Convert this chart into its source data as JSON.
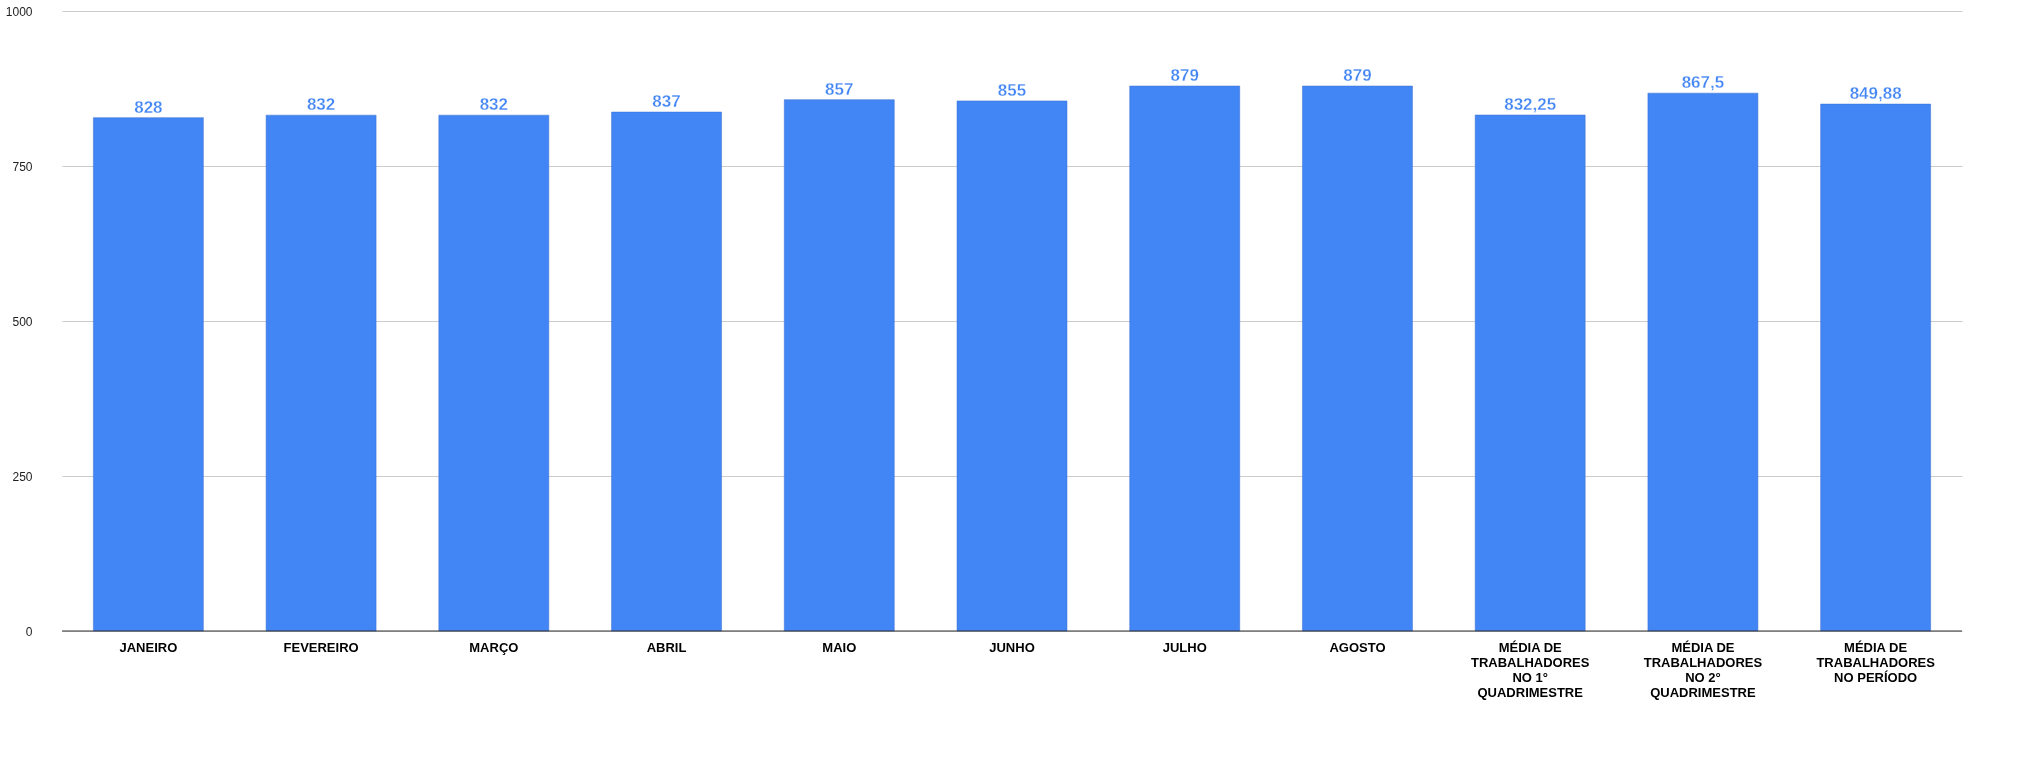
{
  "chart_data": {
    "type": "bar",
    "categories": [
      "JANEIRO",
      "FEVEREIRO",
      "MARÇO",
      "ABRIL",
      "MAIO",
      "JUNHO",
      "JULHO",
      "AGOSTO",
      "MÉDIA DE TRABALHADORES NO 1° QUADRIMESTRE",
      "MÉDIA DE TRABALHADORES NO 2° QUADRIMESTRE",
      "MÉDIA DE TRABALHADORES NO PERÍODO"
    ],
    "values": [
      828,
      832,
      832,
      837,
      857,
      855,
      879,
      879,
      832.25,
      867.5,
      849.88
    ],
    "value_labels": [
      "828",
      "832",
      "832",
      "837",
      "857",
      "855",
      "879",
      "879",
      "832,25",
      "867,5",
      "849,88"
    ],
    "color": "#4285f4",
    "ylim": [
      0,
      1000
    ],
    "yticks": [
      0,
      250,
      500,
      750,
      1000
    ],
    "grid": "y"
  }
}
